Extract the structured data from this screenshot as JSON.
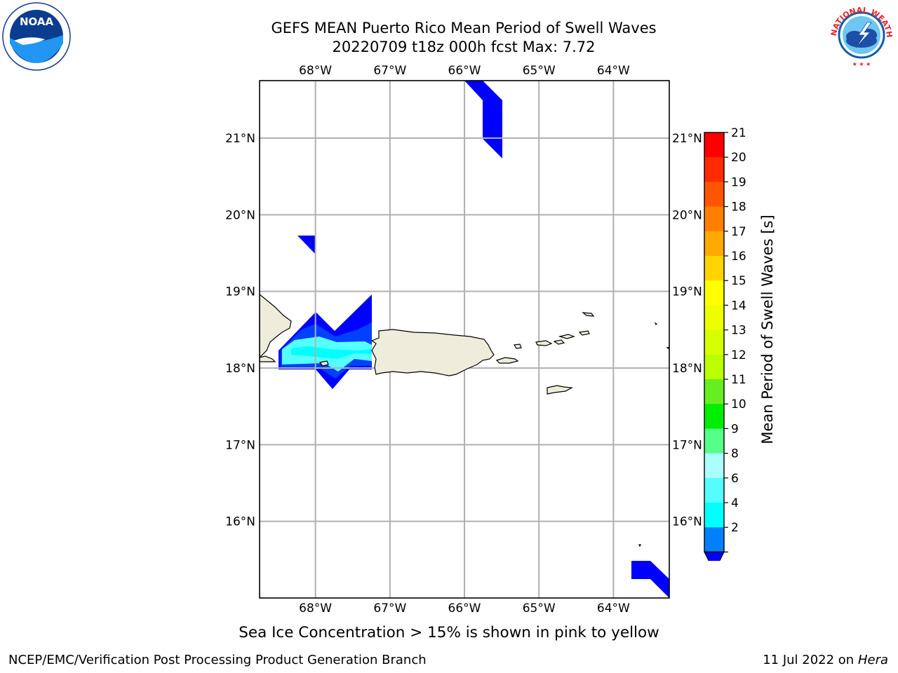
{
  "title": {
    "line1": "GEFS MEAN Puerto Rico Mean Period of Swell Waves",
    "line2": "20220709 t18z 000h fcst   Max: 7.72"
  },
  "map": {
    "lon_labels": [
      "68°W",
      "67°W",
      "66°W",
      "65°W",
      "64°W"
    ],
    "lat_labels": [
      "21°N",
      "20°N",
      "19°N",
      "18°N",
      "17°N",
      "16°N"
    ],
    "lon_values": [
      -68,
      -67,
      -66,
      -65,
      -64
    ],
    "lat_values": [
      21,
      20,
      19,
      18,
      17,
      16
    ],
    "lon_range": [
      -68.75,
      -63.25
    ],
    "lat_range": [
      15.0,
      21.75
    ],
    "land_color": "#eeecdb",
    "grid_color": "#b0b0b0"
  },
  "colorbar": {
    "label": "Mean Period of Swell Waves [s]",
    "ticks": [
      "21",
      "20",
      "19",
      "18",
      "17",
      "16",
      "15",
      "14",
      "13",
      "12",
      "11",
      "10",
      "9",
      "8",
      "6",
      "4",
      "2"
    ],
    "bands_top_to_bottom": [
      "#ff0000",
      "#ff2a00",
      "#ff5500",
      "#ff8000",
      "#ffaa00",
      "#ffd400",
      "#ffff00",
      "#eeff00",
      "#d5ff00",
      "#bbff00",
      "#66ee22",
      "#00ee00",
      "#55ff88",
      "#aaffff",
      "#55ffff",
      "#00ffff",
      "#0080ff"
    ],
    "extend_color": "#0000ff"
  },
  "legend_colors": {
    "deep_blue": "#0000ff",
    "mid_blue": "#0040ff",
    "light_cyan": "#55ffff",
    "cyan": "#00ffff"
  },
  "footer": {
    "note": "Sea Ice Concentration > 15% is shown in pink to yellow",
    "credit_left": "NCEP/EMC/Verification Post Processing Product Generation Branch",
    "credit_date": "11 Jul 2022 on ",
    "credit_machine": "Hera"
  },
  "logos": {
    "noaa_text": "NOAA",
    "nws_text": "NATIONAL WEATHER SERVICE"
  }
}
